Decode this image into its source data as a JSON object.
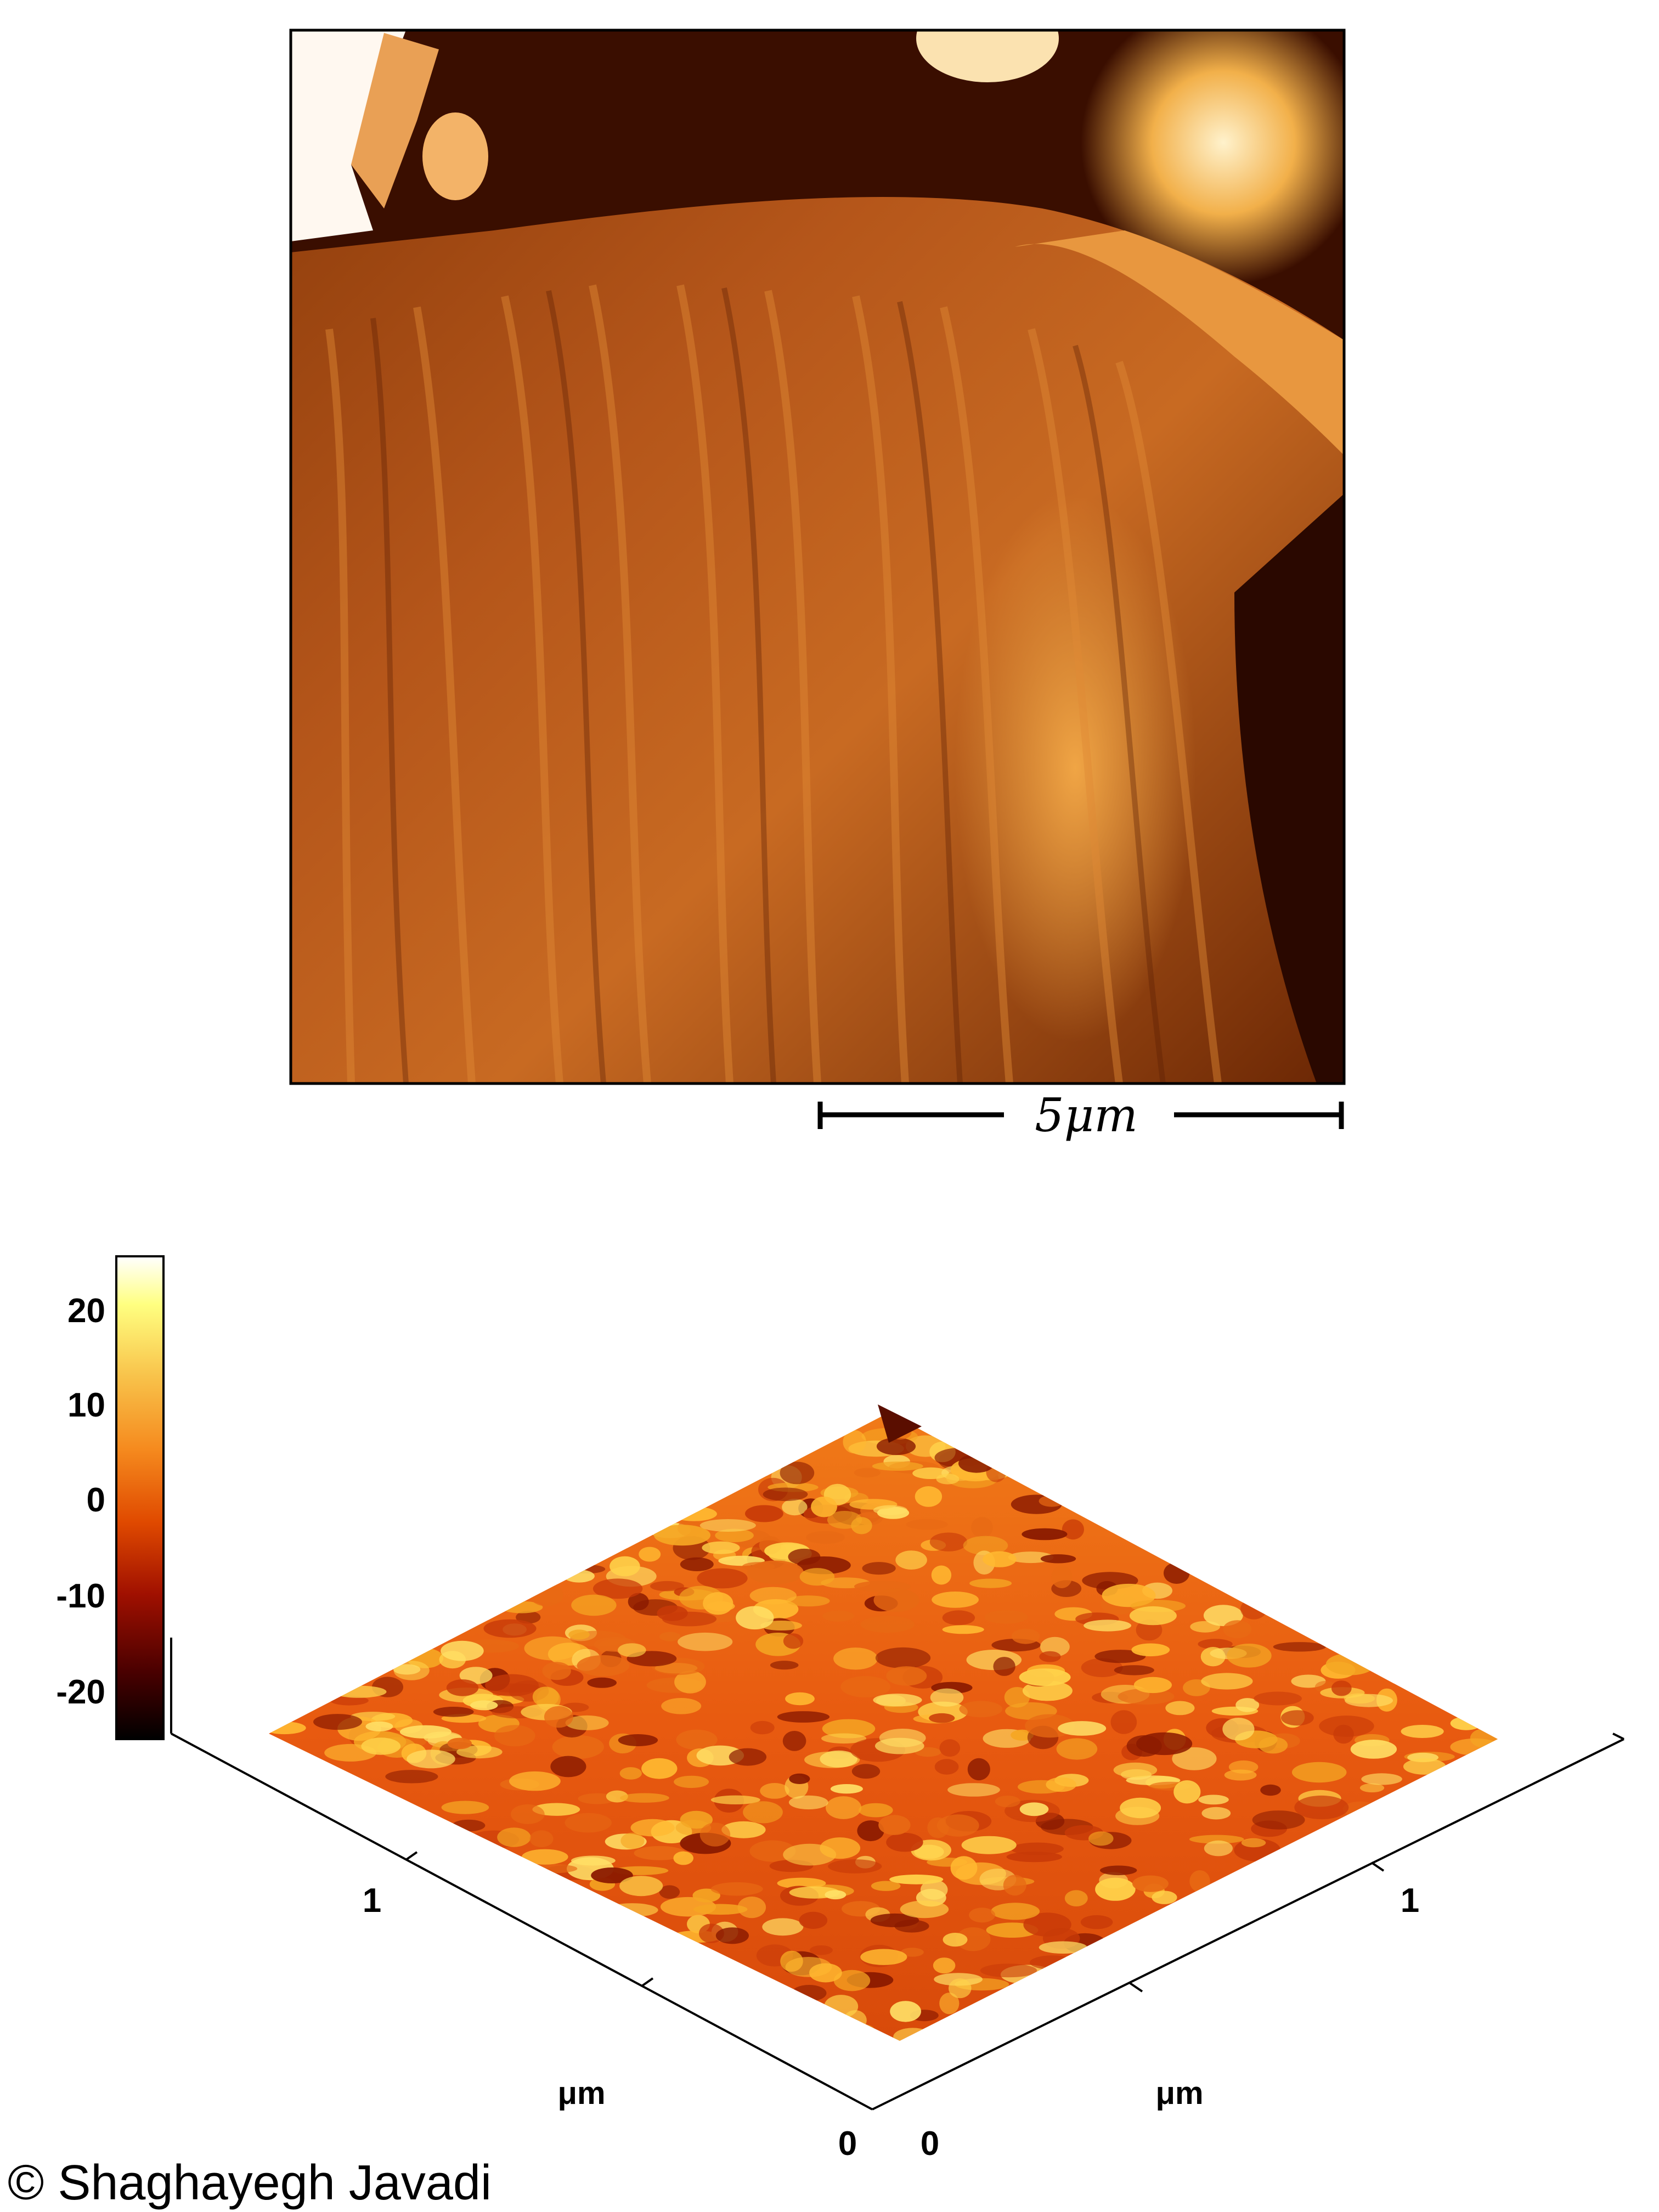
{
  "top_image": {
    "scale_bar": {
      "label": "5μm"
    }
  },
  "bottom_plot": {
    "colorbar": {
      "ticks": [
        "20",
        "10",
        "0",
        "-10",
        "-20"
      ],
      "colors": [
        "#000000",
        "#4a0000",
        "#a01000",
        "#e04a00",
        "#f58a1e",
        "#f8c24a",
        "#ffff80",
        "#ffffff"
      ]
    },
    "left_axis": {
      "ticks": [
        "1",
        "0"
      ],
      "unit": "μm"
    },
    "right_axis": {
      "ticks": [
        "1",
        "0"
      ],
      "unit": "μm"
    }
  },
  "copyright": "© Shaghayegh Javadi"
}
